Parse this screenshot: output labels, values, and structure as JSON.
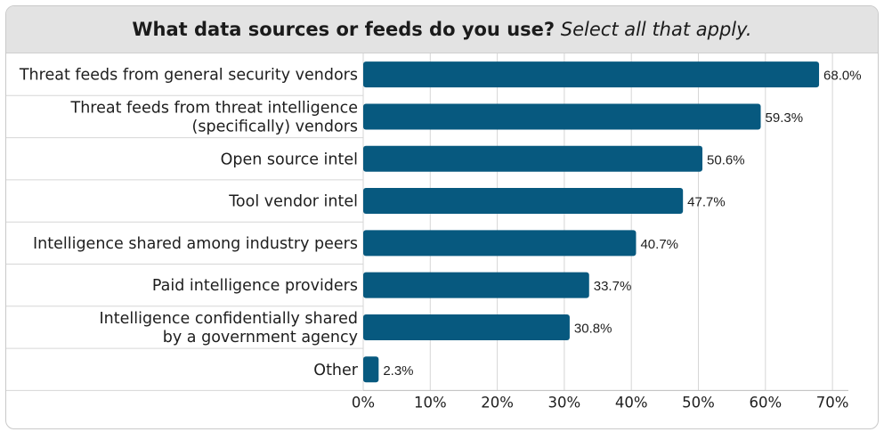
{
  "chart_data": {
    "type": "bar",
    "orientation": "horizontal",
    "title": "What data sources or feeds do you use?",
    "subtitle": "Select all that apply.",
    "categories": [
      [
        "Threat feeds from general security vendors"
      ],
      [
        "Threat feeds from threat intelligence",
        "(specifically) vendors"
      ],
      [
        "Open source intel"
      ],
      [
        "Tool vendor intel"
      ],
      [
        "Intelligence shared among industry peers"
      ],
      [
        "Paid intelligence providers"
      ],
      [
        "Intelligence confidentially shared",
        "by a government agency"
      ],
      [
        "Other"
      ]
    ],
    "values": [
      68.0,
      59.3,
      50.6,
      47.7,
      40.7,
      33.7,
      30.8,
      2.3
    ],
    "value_labels": [
      "68.0%",
      "59.3%",
      "50.6%",
      "47.7%",
      "40.7%",
      "33.7%",
      "30.8%",
      "2.3%"
    ],
    "xlim": [
      0,
      70
    ],
    "x_ticks": [
      "0%",
      "10%",
      "20%",
      "30%",
      "40%",
      "50%",
      "60%",
      "70%"
    ],
    "grid": "vertical",
    "colors": {
      "bar": "#07597f",
      "grid": "#d6d6d6",
      "row_divider": "#d6d6d6",
      "title_band": "#e3e3e3"
    }
  }
}
